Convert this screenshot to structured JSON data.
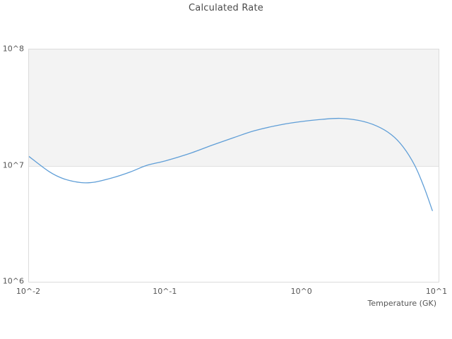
{
  "chart": {
    "title": "Calculated Rate",
    "x_axis_label": "Temperature (GK)"
  },
  "chart_data": {
    "type": "line",
    "title": "Calculated Rate",
    "xlabel": "Temperature (GK)",
    "ylabel": "",
    "x_scale": "log",
    "y_scale": "log",
    "xlim": [
      0.01,
      10
    ],
    "ylim": [
      1000000,
      100000000
    ],
    "x_ticks": [
      "10^-2",
      "10^-1",
      "10^0",
      "10^1"
    ],
    "y_ticks": [
      "10^6",
      "10^7",
      "10^8"
    ],
    "grid": "horizontal-only",
    "legend": "none",
    "plot_band": {
      "from": 10000000,
      "to": 100000000,
      "color": "#f3f3f3"
    },
    "line_color": "#5f9ed7",
    "series": [
      {
        "name": "calculated-rate",
        "points": [
          [
            0.01,
            12000000
          ],
          [
            0.014,
            8900000
          ],
          [
            0.018,
            7700000
          ],
          [
            0.024,
            7150000
          ],
          [
            0.03,
            7200000
          ],
          [
            0.04,
            7800000
          ],
          [
            0.055,
            8800000
          ],
          [
            0.072,
            10000000
          ],
          [
            0.1,
            11000000
          ],
          [
            0.15,
            12700000
          ],
          [
            0.22,
            15000000
          ],
          [
            0.32,
            17500000
          ],
          [
            0.45,
            20000000
          ],
          [
            0.7,
            22500000
          ],
          [
            1.0,
            24000000
          ],
          [
            1.4,
            25000000
          ],
          [
            1.9,
            25500000
          ],
          [
            2.6,
            24500000
          ],
          [
            3.5,
            22000000
          ],
          [
            4.5,
            18500000
          ],
          [
            5.5,
            14500000
          ],
          [
            6.7,
            10000000
          ],
          [
            7.8,
            6600000
          ],
          [
            9.0,
            4100000
          ]
        ]
      }
    ]
  }
}
